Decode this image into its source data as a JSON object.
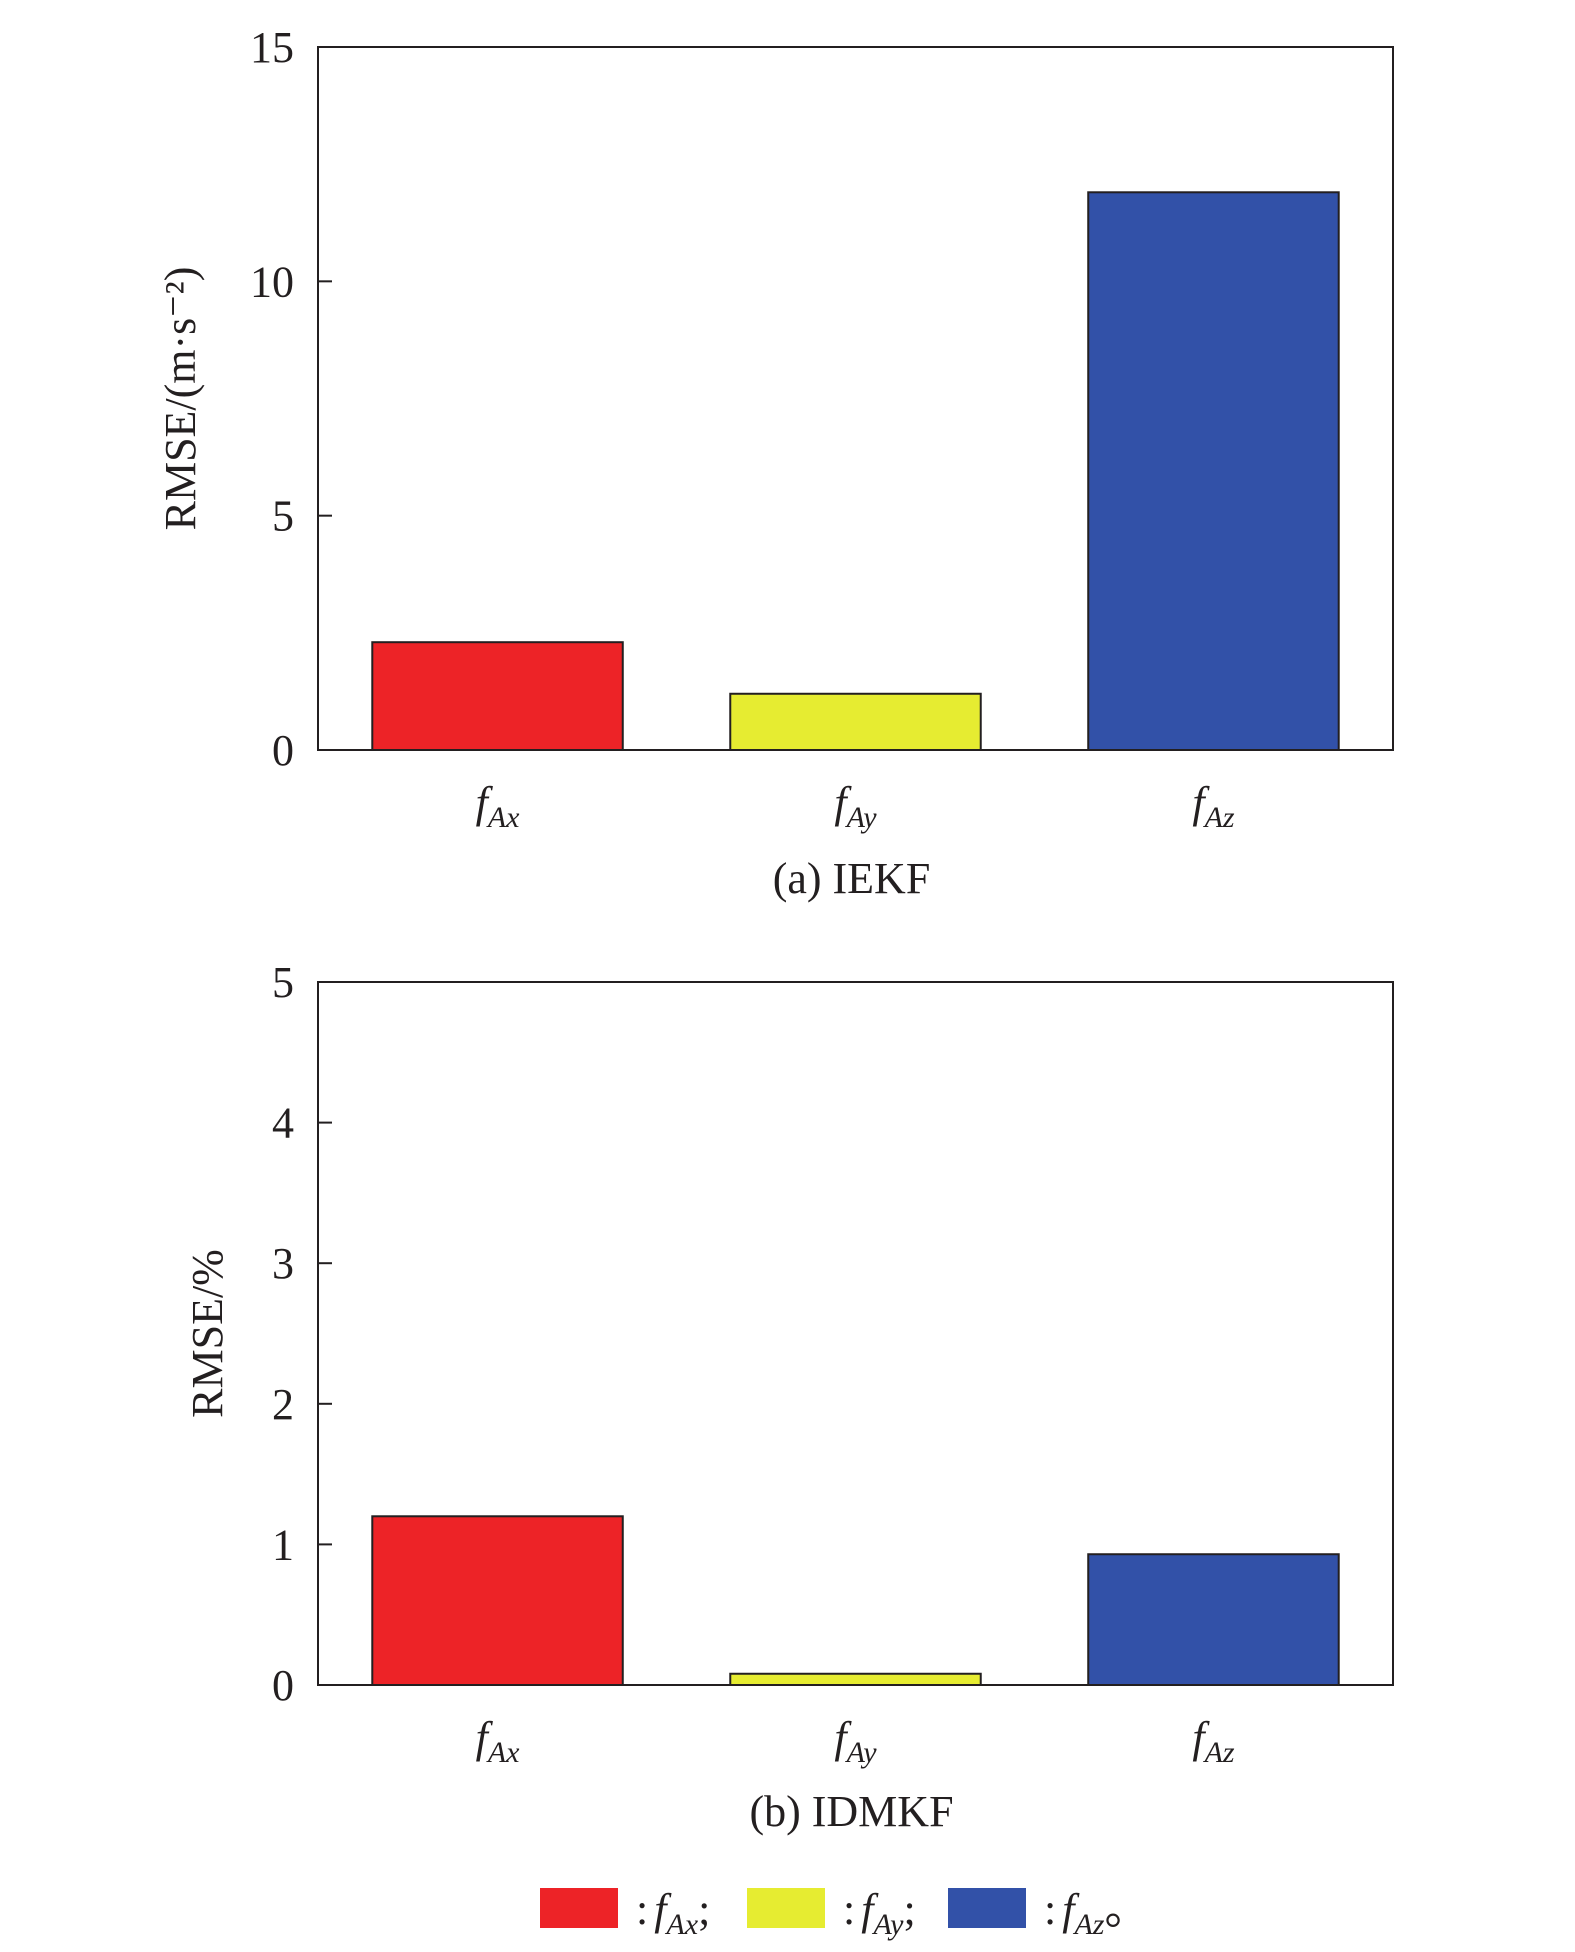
{
  "chart_data": [
    {
      "type": "bar",
      "caption": "(a) IEKF",
      "ylabel": "RMSE/(m·s⁻²)",
      "ylim": [
        0,
        15
      ],
      "yticks": [
        0,
        5,
        10,
        15
      ],
      "categories": [
        "fAx",
        "fAy",
        "fAz"
      ],
      "category_labels": [
        {
          "base": "f",
          "sub": "Ax"
        },
        {
          "base": "f",
          "sub": "Ay"
        },
        {
          "base": "f",
          "sub": "Az"
        }
      ],
      "values": [
        2.3,
        1.2,
        11.9
      ],
      "colors": [
        "#ed2327",
        "#e6ec31",
        "#3251a8"
      ]
    },
    {
      "type": "bar",
      "caption": "(b) IDMKF",
      "ylabel": "RMSE/%",
      "ylim": [
        0,
        5
      ],
      "yticks": [
        0,
        1,
        2,
        3,
        4,
        5
      ],
      "categories": [
        "fAx",
        "fAy",
        "fAz"
      ],
      "category_labels": [
        {
          "base": "f",
          "sub": "Ax"
        },
        {
          "base": "f",
          "sub": "Ay"
        },
        {
          "base": "f",
          "sub": "Az"
        }
      ],
      "values": [
        1.2,
        0.08,
        0.93
      ],
      "colors": [
        "#ed2327",
        "#e6ec31",
        "#3251a8"
      ]
    }
  ],
  "legend": {
    "placement": "bottom",
    "entries": [
      {
        "color": "#ed2327",
        "prefix": ":",
        "base": "f",
        "sub": "Ax",
        "suffix": ";"
      },
      {
        "color": "#e6ec31",
        "prefix": ":",
        "base": "f",
        "sub": "Ay",
        "suffix": ";"
      },
      {
        "color": "#3251a8",
        "prefix": ":",
        "base": "f",
        "sub": "Az",
        "suffix": "。"
      }
    ]
  }
}
